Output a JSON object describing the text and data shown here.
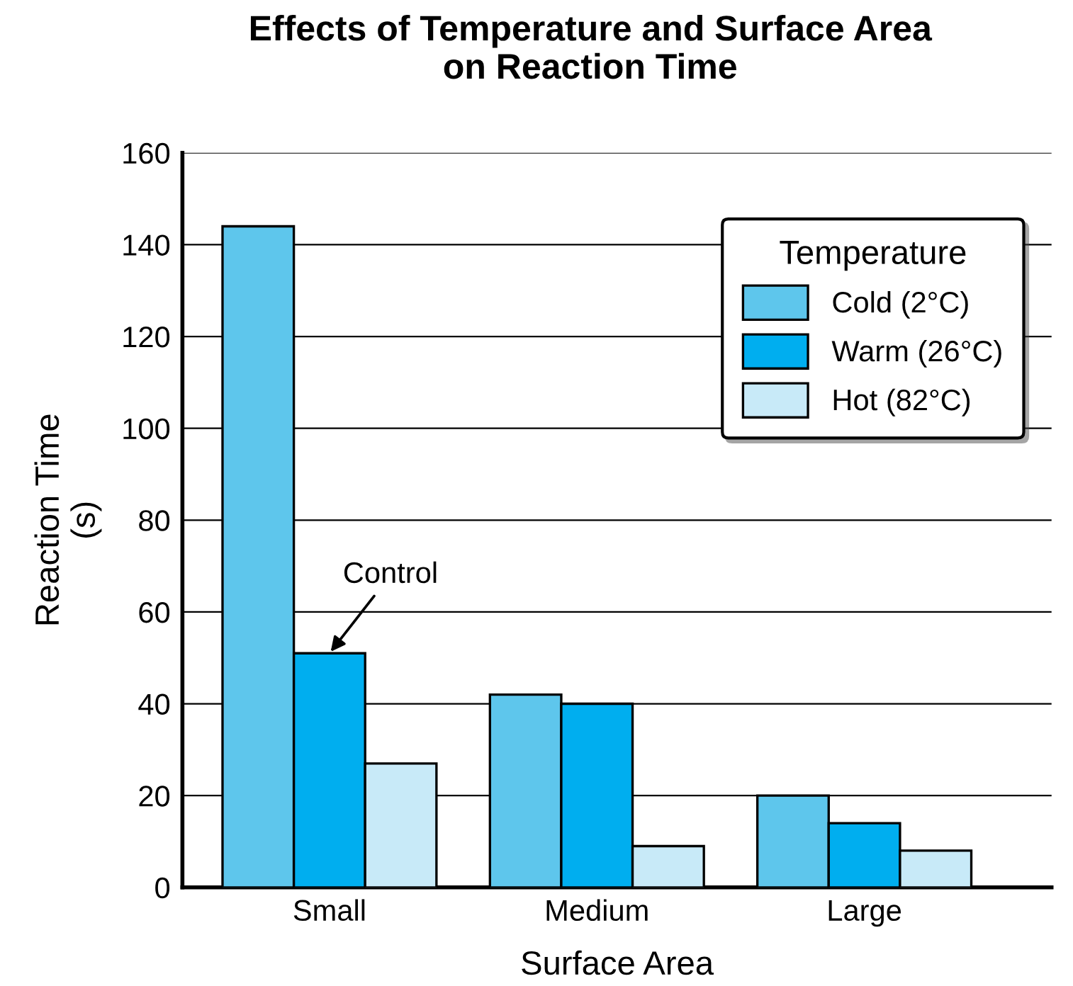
{
  "chart_data": {
    "type": "bar",
    "title": "Effects of Temperature and Surface Area\non Reaction Time",
    "xlabel": "Surface Area",
    "ylabel": "Reaction Time\n(s)",
    "legend_title": "Temperature",
    "categories": [
      "Small",
      "Medium",
      "Large"
    ],
    "series": [
      {
        "name": "Cold (2°C)",
        "color": "#5ec6ec",
        "values": [
          144,
          42,
          20
        ]
      },
      {
        "name": "Warm (26°C)",
        "color": "#00aeef",
        "values": [
          51,
          40,
          14
        ]
      },
      {
        "name": "Hot (82°C)",
        "color": "#c8eaf8",
        "values": [
          27,
          9,
          8
        ]
      }
    ],
    "annotations": [
      {
        "text": "Control",
        "x": "Small",
        "y": 51
      }
    ],
    "ylim": [
      0,
      160
    ],
    "yticks": [
      0,
      20,
      40,
      60,
      80,
      100,
      120,
      140,
      160
    ],
    "grid": "y",
    "legend": "top right"
  }
}
